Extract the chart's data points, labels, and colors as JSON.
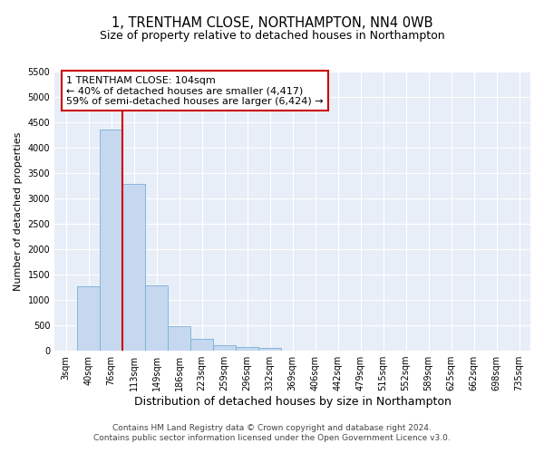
{
  "title": "1, TRENTHAM CLOSE, NORTHAMPTON, NN4 0WB",
  "subtitle": "Size of property relative to detached houses in Northampton",
  "xlabel": "Distribution of detached houses by size in Northampton",
  "ylabel": "Number of detached properties",
  "footer_line1": "Contains HM Land Registry data © Crown copyright and database right 2024.",
  "footer_line2": "Contains public sector information licensed under the Open Government Licence v3.0.",
  "categories": [
    "3sqm",
    "40sqm",
    "76sqm",
    "113sqm",
    "149sqm",
    "186sqm",
    "223sqm",
    "259sqm",
    "296sqm",
    "332sqm",
    "369sqm",
    "406sqm",
    "442sqm",
    "479sqm",
    "515sqm",
    "552sqm",
    "589sqm",
    "625sqm",
    "662sqm",
    "698sqm",
    "735sqm"
  ],
  "values": [
    0,
    1270,
    4350,
    3280,
    1280,
    480,
    235,
    100,
    75,
    60,
    0,
    0,
    0,
    0,
    0,
    0,
    0,
    0,
    0,
    0,
    0
  ],
  "bar_color": "#c5d8f0",
  "bar_edge_color": "#7aafd4",
  "vline_color": "#cc0000",
  "annotation_line1": "1 TRENTHAM CLOSE: 104sqm",
  "annotation_line2": "← 40% of detached houses are smaller (4,417)",
  "annotation_line3": "59% of semi-detached houses are larger (6,424) →",
  "annotation_box_color": "white",
  "annotation_box_edge_color": "#cc0000",
  "ylim_max": 5500,
  "yticks": [
    0,
    500,
    1000,
    1500,
    2000,
    2500,
    3000,
    3500,
    4000,
    4500,
    5000,
    5500
  ],
  "background_color": "#e8eef8",
  "grid_color": "white",
  "title_fontsize": 10.5,
  "subtitle_fontsize": 9,
  "ylabel_fontsize": 8,
  "xlabel_fontsize": 9,
  "tick_fontsize": 7,
  "footer_fontsize": 6.5,
  "annotation_fontsize": 8
}
